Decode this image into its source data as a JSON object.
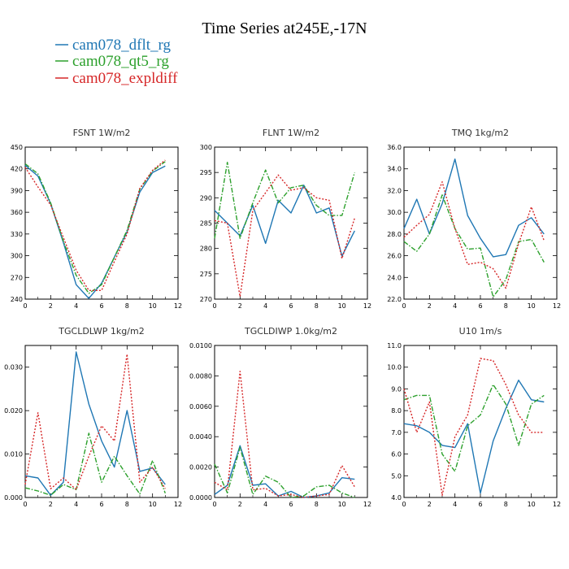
{
  "title": "Time Series at245E,-17N",
  "legend": [
    {
      "label": "cam078_dflt_rg",
      "color": "#1f77b4",
      "dash": "solid"
    },
    {
      "label": "cam078_qt5_rg",
      "color": "#2ca02c",
      "dash": "dashdot"
    },
    {
      "label": "cam078_expldiff",
      "color": "#d62728",
      "dash": "dotted"
    }
  ],
  "chart_data": [
    {
      "type": "line",
      "title": "FSNT   1W/m2",
      "x": [
        0,
        1,
        2,
        3,
        4,
        5,
        6,
        7,
        8,
        9,
        10,
        11
      ],
      "xlim": [
        0,
        12
      ],
      "xticks": [
        "0",
        "2",
        "4",
        "6",
        "8",
        "10",
        "12"
      ],
      "ylim": [
        240,
        450
      ],
      "yticks": [
        "240",
        "270",
        "300",
        "330",
        "360",
        "390",
        "420",
        "450"
      ],
      "series": [
        {
          "name": "cam078_dflt_rg",
          "values": [
            425,
            410,
            372,
            318,
            260,
            241,
            262,
            298,
            333,
            388,
            415,
            424
          ]
        },
        {
          "name": "cam078_qt5_rg",
          "values": [
            427,
            413,
            373,
            320,
            273,
            248,
            260,
            298,
            335,
            392,
            417,
            430
          ]
        },
        {
          "name": "cam078_expldiff",
          "values": [
            422,
            395,
            370,
            325,
            280,
            252,
            252,
            292,
            330,
            393,
            418,
            432
          ]
        }
      ]
    },
    {
      "type": "line",
      "title": "FLNT   1W/m2",
      "x": [
        0,
        1,
        2,
        3,
        4,
        5,
        6,
        7,
        8,
        9,
        10,
        11
      ],
      "xlim": [
        0,
        12
      ],
      "xticks": [
        "0",
        "2",
        "4",
        "6",
        "8",
        "10",
        "12"
      ],
      "ylim": [
        270,
        300
      ],
      "yticks": [
        "270",
        "275",
        "280",
        "285",
        "290",
        "295",
        "300"
      ],
      "series": [
        {
          "name": "cam078_dflt_rg",
          "values": [
            287.5,
            285.0,
            282.5,
            288.5,
            281.0,
            289.5,
            287.0,
            292.5,
            287.0,
            288.0,
            278.5,
            283.5
          ]
        },
        {
          "name": "cam078_qt5_rg",
          "values": [
            282.0,
            297.0,
            282.0,
            289.0,
            295.5,
            289.0,
            292.0,
            292.5,
            288.5,
            286.5,
            286.5,
            295.0
          ]
        },
        {
          "name": "cam078_expldiff",
          "values": [
            285.5,
            285.0,
            270.5,
            287.5,
            291.0,
            294.5,
            291.5,
            292.0,
            290.0,
            289.5,
            278.0,
            286.0
          ]
        }
      ]
    },
    {
      "type": "line",
      "title": "TMQ   1kg/m2",
      "x": [
        0,
        1,
        2,
        3,
        4,
        5,
        6,
        7,
        8,
        9,
        10,
        11
      ],
      "xlim": [
        0,
        12
      ],
      "xticks": [
        "0",
        "2",
        "4",
        "6",
        "8",
        "10",
        "12"
      ],
      "ylim": [
        22,
        36
      ],
      "yticks": [
        "22.0",
        "24.0",
        "26.0",
        "28.0",
        "30.0",
        "32.0",
        "34.0",
        "36.0"
      ],
      "series": [
        {
          "name": "cam078_dflt_rg",
          "values": [
            28.5,
            31.2,
            28.0,
            30.8,
            34.9,
            29.7,
            27.6,
            25.9,
            26.1,
            28.8,
            29.5,
            28.0
          ]
        },
        {
          "name": "cam078_qt5_rg",
          "values": [
            27.3,
            26.4,
            28.0,
            31.6,
            28.5,
            26.6,
            26.7,
            22.2,
            23.8,
            27.3,
            27.5,
            25.4
          ]
        },
        {
          "name": "cam078_expldiff",
          "values": [
            27.7,
            28.8,
            29.8,
            32.8,
            28.5,
            25.2,
            25.4,
            24.8,
            23.0,
            27.1,
            30.5,
            27.4
          ]
        }
      ]
    },
    {
      "type": "line",
      "title": "TGCLDLWP   1kg/m2",
      "x": [
        0,
        1,
        2,
        3,
        4,
        5,
        6,
        7,
        8,
        9,
        10,
        11
      ],
      "xlim": [
        0,
        12
      ],
      "xticks": [
        "0",
        "2",
        "4",
        "6",
        "8",
        "10",
        "12"
      ],
      "ylim": [
        0,
        0.035
      ],
      "yticks": [
        "0.000",
        "0.010",
        "0.020",
        "0.030"
      ],
      "yticks_values": [
        0,
        0.01,
        0.02,
        0.03
      ],
      "series": [
        {
          "name": "cam078_dflt_rg",
          "values": [
            0.005,
            0.0045,
            0.0005,
            0.0035,
            0.0335,
            0.0215,
            0.013,
            0.007,
            0.02,
            0.006,
            0.0068,
            0.003
          ]
        },
        {
          "name": "cam078_qt5_rg",
          "values": [
            0.0022,
            0.0015,
            0.0005,
            0.003,
            0.0018,
            0.0148,
            0.0035,
            0.0095,
            0.005,
            0.0008,
            0.0085,
            0.001
          ]
        },
        {
          "name": "cam078_expldiff",
          "values": [
            0.003,
            0.0195,
            0.002,
            0.0045,
            0.0018,
            0.0095,
            0.0165,
            0.013,
            0.033,
            0.0035,
            0.007,
            0.002
          ]
        }
      ]
    },
    {
      "type": "line",
      "title": "TGCLDIWP   1.0kg/m2",
      "x": [
        0,
        1,
        2,
        3,
        4,
        5,
        6,
        7,
        8,
        9,
        10,
        11
      ],
      "xlim": [
        0,
        12
      ],
      "xticks": [
        "0",
        "2",
        "4",
        "6",
        "8",
        "10",
        "12"
      ],
      "ylim": [
        0,
        0.01
      ],
      "yticks": [
        "0.0000",
        "0.0020",
        "0.0040",
        "0.0060",
        "0.0080",
        "0.0100"
      ],
      "series": [
        {
          "name": "cam078_dflt_rg",
          "values": [
            0.0002,
            0.0008,
            0.0034,
            0.0008,
            0.0009,
            0.0001,
            0.0004,
            0.0,
            0.0001,
            0.0003,
            0.0013,
            0.0012
          ]
        },
        {
          "name": "cam078_qt5_rg",
          "values": [
            0.0022,
            0.0003,
            0.0033,
            0.0002,
            0.0014,
            0.001,
            0.0,
            0.0001,
            0.0007,
            0.0008,
            0.0003,
            0.0
          ]
        },
        {
          "name": "cam078_expldiff",
          "values": [
            0.001,
            0.0005,
            0.0083,
            0.0005,
            0.0006,
            0.0001,
            0.0002,
            0.0,
            0.0001,
            0.0002,
            0.0021,
            0.0007
          ]
        }
      ]
    },
    {
      "type": "line",
      "title": "U10   1m/s",
      "x": [
        0,
        1,
        2,
        3,
        4,
        5,
        6,
        7,
        8,
        9,
        10,
        11
      ],
      "xlim": [
        0,
        12
      ],
      "xticks": [
        "0",
        "2",
        "4",
        "6",
        "8",
        "10",
        "12"
      ],
      "ylim": [
        4,
        11
      ],
      "yticks": [
        "4.0",
        "5.0",
        "6.0",
        "7.0",
        "8.0",
        "9.0",
        "10.0",
        "11.0"
      ],
      "series": [
        {
          "name": "cam078_dflt_rg",
          "values": [
            7.4,
            7.3,
            7.0,
            6.4,
            6.3,
            7.4,
            4.2,
            6.6,
            8.1,
            9.4,
            8.5,
            8.4
          ]
        },
        {
          "name": "cam078_qt5_rg",
          "values": [
            8.5,
            8.7,
            8.7,
            6.0,
            5.2,
            7.3,
            7.8,
            9.2,
            8.3,
            6.4,
            8.3,
            8.7
          ]
        },
        {
          "name": "cam078_expldiff",
          "values": [
            9.0,
            7.0,
            8.4,
            4.1,
            6.8,
            7.8,
            10.4,
            10.3,
            9.2,
            7.8,
            7.0,
            7.0
          ]
        }
      ]
    }
  ]
}
